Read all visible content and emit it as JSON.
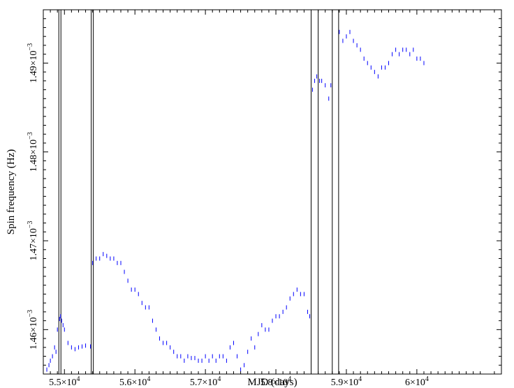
{
  "chart_data": {
    "type": "scatter",
    "title": "",
    "xlabel": "MJD (days)",
    "ylabel": "Spin frequency (Hz)",
    "xlim": [
      54700,
      61200
    ],
    "ylim": [
      0.001455,
      0.001496
    ],
    "x_ticks": [
      {
        "value": 55000,
        "mant": "5.5×10",
        "exp": "4"
      },
      {
        "value": 56000,
        "mant": "5.6×10",
        "exp": "4"
      },
      {
        "value": 57000,
        "mant": "5.7×10",
        "exp": "4"
      },
      {
        "value": 58000,
        "mant": "5.8×10",
        "exp": "4"
      },
      {
        "value": 59000,
        "mant": "5.9×10",
        "exp": "4"
      },
      {
        "value": 60000,
        "mant": "6×10",
        "exp": "4"
      }
    ],
    "y_ticks": [
      {
        "value": 0.00146,
        "mant": "1.46×10",
        "exp": "−3"
      },
      {
        "value": 0.00147,
        "mant": "1.47×10",
        "exp": "−3"
      },
      {
        "value": 0.00148,
        "mant": "1.48×10",
        "exp": "−3"
      },
      {
        "value": 0.00149,
        "mant": "1.49×10",
        "exp": "−3"
      }
    ],
    "series_color": "#0000ff",
    "vertical_lines": [
      54920,
      54950,
      55380,
      55410,
      58500,
      58600,
      58800,
      58890
    ],
    "series": [
      {
        "x": [
          54750,
          54780,
          54800,
          54830,
          54860,
          54880,
          54900,
          54930,
          54945,
          54960,
          54980,
          55000,
          55050,
          55100,
          55150,
          55200,
          55250,
          55300,
          55370,
          55400,
          55450,
          55500,
          55550,
          55600,
          55650,
          55700,
          55750,
          55800,
          55850,
          55900,
          55950,
          56000,
          56050,
          56100,
          56150,
          56200,
          56250,
          56300,
          56350,
          56400,
          56450,
          56500,
          56550,
          56600,
          56650,
          56700,
          56750,
          56800,
          56850,
          56900,
          56950,
          57000,
          57050,
          57100,
          57150,
          57200,
          57250,
          57300,
          57350,
          57400,
          57450,
          57500,
          57550,
          57600,
          57650,
          57700,
          57750,
          57800,
          57850,
          57900,
          57950,
          58000,
          58050,
          58100,
          58150,
          58200,
          58250,
          58300,
          58350,
          58400,
          58450,
          58480,
          58520,
          58550,
          58580,
          58620,
          58650,
          58700,
          58750,
          58780,
          58900,
          58950,
          59000,
          59050,
          59100,
          59150,
          59200,
          59250,
          59300,
          59350,
          59400,
          59450,
          59500,
          59550,
          59600,
          59650,
          59700,
          59750,
          59800,
          59850,
          59900,
          59950,
          60000,
          60050,
          60100
        ],
        "y": [
          0.0014555,
          0.001456,
          0.0014565,
          0.001457,
          0.001458,
          0.0014575,
          0.00146,
          0.0014612,
          0.0014615,
          0.001461,
          0.0014605,
          0.00146,
          0.0014585,
          0.001458,
          0.0014578,
          0.001458,
          0.0014581,
          0.0014582,
          0.0014581,
          0.0014675,
          0.001468,
          0.001468,
          0.0014685,
          0.0014683,
          0.001468,
          0.001468,
          0.0014675,
          0.0014675,
          0.0014665,
          0.0014655,
          0.0014645,
          0.0014645,
          0.001464,
          0.001463,
          0.0014625,
          0.0014625,
          0.001461,
          0.00146,
          0.001459,
          0.0014585,
          0.0014585,
          0.001458,
          0.0014575,
          0.001457,
          0.001457,
          0.0014565,
          0.001457,
          0.0014568,
          0.0014568,
          0.0014565,
          0.0014565,
          0.001457,
          0.0014565,
          0.001457,
          0.0014565,
          0.001457,
          0.001457,
          0.0014565,
          0.001458,
          0.0014585,
          0.001457,
          0.0014555,
          0.001456,
          0.0014575,
          0.001459,
          0.001458,
          0.0014595,
          0.0014605,
          0.00146,
          0.00146,
          0.001461,
          0.0014615,
          0.0014615,
          0.001462,
          0.0014625,
          0.0014635,
          0.001464,
          0.0014645,
          0.001464,
          0.001464,
          0.001462,
          0.0014615,
          0.001487,
          0.001488,
          0.0014885,
          0.001488,
          0.001488,
          0.0014875,
          0.001486,
          0.0014875,
          0.0014935,
          0.0014925,
          0.001493,
          0.0014935,
          0.0014925,
          0.001492,
          0.0014915,
          0.0014905,
          0.00149,
          0.0014895,
          0.001489,
          0.0014885,
          0.0014895,
          0.0014895,
          0.00149,
          0.001491,
          0.0014915,
          0.001491,
          0.0014915,
          0.0014915,
          0.001491,
          0.0014915,
          0.0014905,
          0.0014905,
          0.00149
        ]
      }
    ]
  }
}
